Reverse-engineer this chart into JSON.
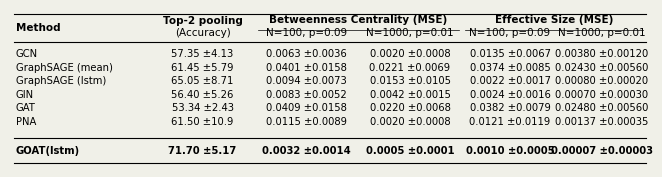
{
  "rows": [
    [
      "GCN",
      "57.35 ±4.13",
      "0.0063 ±0.0036",
      "0.0020 ±0.0008",
      "0.0135 ±0.0067",
      "0.00380 ±0.00120"
    ],
    [
      "GraphSAGE (mean)",
      "61.45 ±5.79",
      "0.0401 ±0.0158",
      "0.0221 ±0.0069",
      "0.0374 ±0.0085",
      "0.02430 ±0.00560"
    ],
    [
      "GraphSAGE (lstm)",
      "65.05 ±8.71",
      "0.0094 ±0.0073",
      "0.0153 ±0.0105",
      "0.0022 ±0.0017",
      "0.00080 ±0.00020"
    ],
    [
      "GIN",
      "56.40 ±5.26",
      "0.0083 ±0.0052",
      "0.0042 ±0.0015",
      "0.0024 ±0.0016",
      "0.00070 ±0.00030"
    ],
    [
      "GAT",
      "53.34 ±2.43",
      "0.0409 ±0.0158",
      "0.0220 ±0.0068",
      "0.0382 ±0.0079",
      "0.02480 ±0.00560"
    ],
    [
      "PNA",
      "61.50 ±10.9",
      "0.0115 ±0.0089",
      "0.0020 ±0.0008",
      "0.0121 ±0.0119",
      "0.00137 ±0.00035"
    ]
  ],
  "last_row": [
    "GOAT(lstm)",
    "71.70 ±5.17",
    "0.0032 ±0.0014",
    "0.0005 ±0.0001",
    "0.0010 ±0.0005",
    "0.00007 ±0.00003"
  ],
  "background_color": "#f0f0e8",
  "font_size": 7.2,
  "header_font_size": 7.5
}
